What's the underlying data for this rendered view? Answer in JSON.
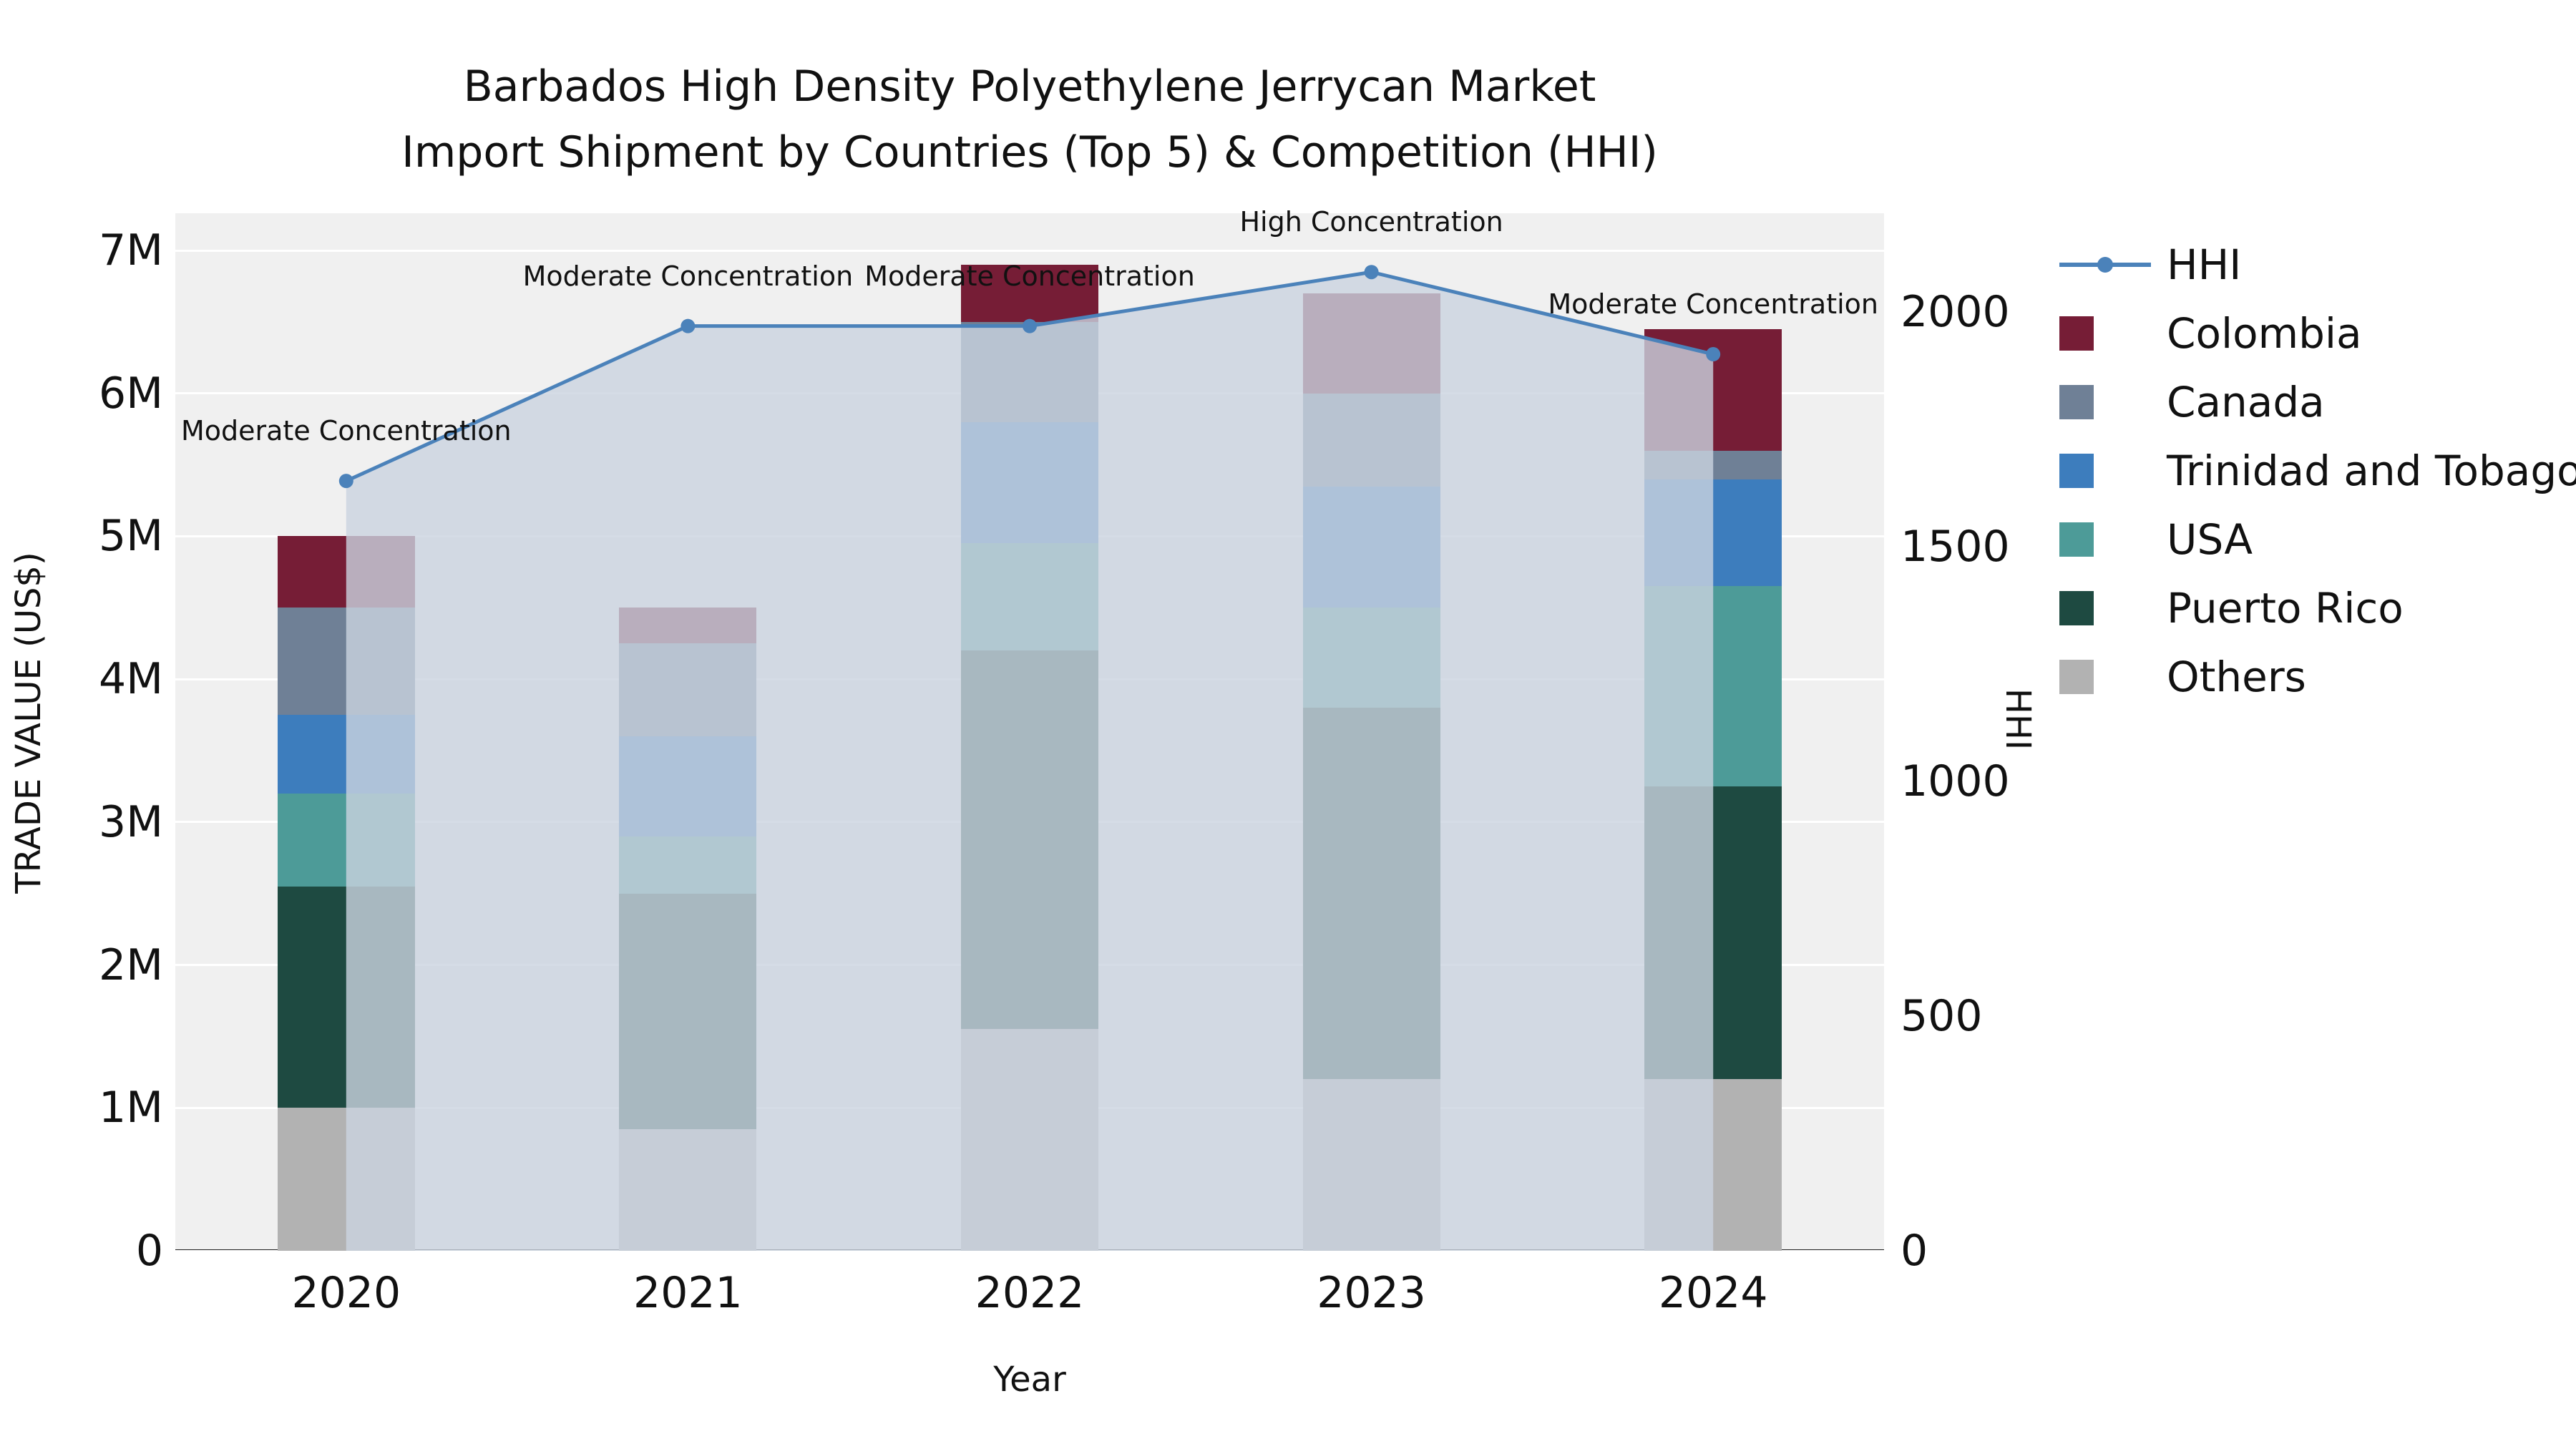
{
  "title": {
    "line1": "Barbados High Density Polyethylene Jerrycan Market",
    "line2": "Import Shipment by Countries (Top 5) & Competition (HHI)"
  },
  "axes": {
    "y_left_label": "TRADE VALUE (US$)",
    "y_right_label": "HHI",
    "x_label": "Year",
    "y_left_ticks": [
      {
        "label": "0",
        "value": 0
      },
      {
        "label": "1M",
        "value": 1000000
      },
      {
        "label": "2M",
        "value": 2000000
      },
      {
        "label": "3M",
        "value": 3000000
      },
      {
        "label": "4M",
        "value": 4000000
      },
      {
        "label": "5M",
        "value": 5000000
      },
      {
        "label": "6M",
        "value": 6000000
      },
      {
        "label": "7M",
        "value": 7000000
      }
    ],
    "y_right_ticks": [
      {
        "label": "0",
        "value": 0
      },
      {
        "label": "500",
        "value": 500
      },
      {
        "label": "1000",
        "value": 1000
      },
      {
        "label": "1500",
        "value": 1500
      },
      {
        "label": "2000",
        "value": 2000
      }
    ]
  },
  "legend": {
    "items": [
      {
        "label": "HHI",
        "swatch": "line"
      },
      {
        "label": "Colombia",
        "swatch": "patch"
      },
      {
        "label": "Canada",
        "swatch": "patch"
      },
      {
        "label": "Trinidad and Tobago",
        "swatch": "patch"
      },
      {
        "label": "USA",
        "swatch": "patch"
      },
      {
        "label": "Puerto Rico",
        "swatch": "patch"
      },
      {
        "label": "Others",
        "swatch": "patch"
      }
    ]
  },
  "chart_data": {
    "type": "bar",
    "subtype": "stacked-bar-with-line-overlay",
    "title": "Barbados High Density Polyethylene Jerrycan Market Import Shipment by Countries (Top 5) & Competition (HHI)",
    "xlabel": "Year",
    "ylabel_left": "TRADE VALUE (US$)",
    "ylabel_right": "HHI",
    "ylim_left": [
      0,
      7260000
    ],
    "ylim_right": [
      0,
      2210
    ],
    "grid": true,
    "legend_position": "right",
    "plot_bg": "#f0f0f0",
    "categories": [
      "2020",
      "2021",
      "2022",
      "2023",
      "2024"
    ],
    "series": [
      {
        "name": "Others",
        "color": "#b2b2b2",
        "values": [
          1000000,
          850000,
          1550000,
          1200000,
          1200000
        ]
      },
      {
        "name": "Puerto Rico",
        "color": "#1e4a41",
        "values": [
          1550000,
          1650000,
          2650000,
          2600000,
          2050000
        ]
      },
      {
        "name": "USA",
        "color": "#4d9b98",
        "values": [
          650000,
          400000,
          750000,
          700000,
          1400000
        ]
      },
      {
        "name": "Trinidad and Tobago",
        "color": "#3d7dbd",
        "values": [
          550000,
          700000,
          850000,
          850000,
          750000
        ]
      },
      {
        "name": "Canada",
        "color": "#6f8096",
        "values": [
          750000,
          650000,
          700000,
          650000,
          200000
        ]
      },
      {
        "name": "Colombia",
        "color": "#761d36",
        "values": [
          500000,
          250000,
          400000,
          700000,
          850000
        ]
      }
    ],
    "line_series": {
      "name": "HHI",
      "axis": "right",
      "color": "#4b82ba",
      "area_fill": "rgba(203,211,224,0.8)",
      "values": [
        1640,
        1970,
        1970,
        2085,
        1910
      ]
    },
    "annotations": [
      "Moderate Concentration",
      "Moderate Concentration",
      "Moderate Concentration",
      "High Concentration",
      "Moderate Concentration"
    ]
  }
}
